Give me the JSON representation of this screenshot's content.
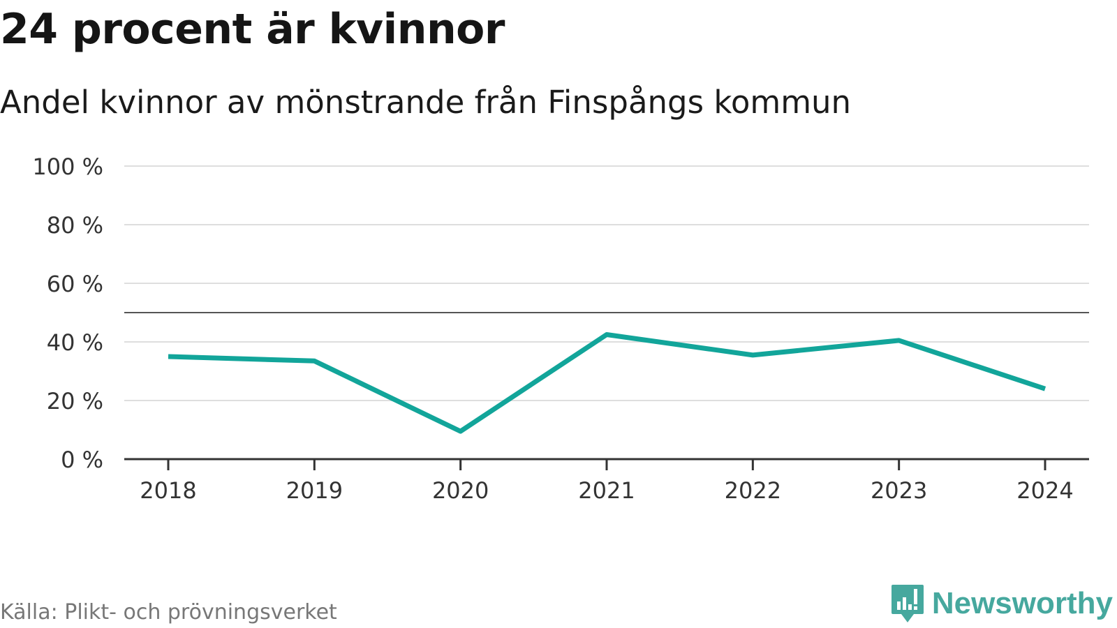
{
  "header": {
    "title": "24 procent är kvinnor",
    "subtitle": "Andel kvinnor av mönstrande från Finspångs kommun"
  },
  "chart_data": {
    "type": "line",
    "title": "24 procent är kvinnor",
    "subtitle": "Andel kvinnor av mönstrande från Finspångs kommun",
    "xlabel": "",
    "ylabel": "",
    "categories": [
      "2018",
      "2019",
      "2020",
      "2021",
      "2022",
      "2023",
      "2024"
    ],
    "series": [
      {
        "name": "Andel kvinnor",
        "values": [
          35,
          33.5,
          9.5,
          42.5,
          35.5,
          40.5,
          24
        ]
      }
    ],
    "ylim": [
      0,
      100
    ],
    "yticks": [
      0,
      20,
      40,
      60,
      80,
      100
    ],
    "ytick_labels": [
      "0 %",
      "20 %",
      "40 %",
      "60 %",
      "80 %",
      "100 %"
    ],
    "reference_line": 50,
    "grid": true,
    "line_color": "#12a59a"
  },
  "footer": {
    "source": "Källa: Plikt- och prövningsverket",
    "brand": "Newsworthy",
    "brand_color": "#46a89e"
  }
}
